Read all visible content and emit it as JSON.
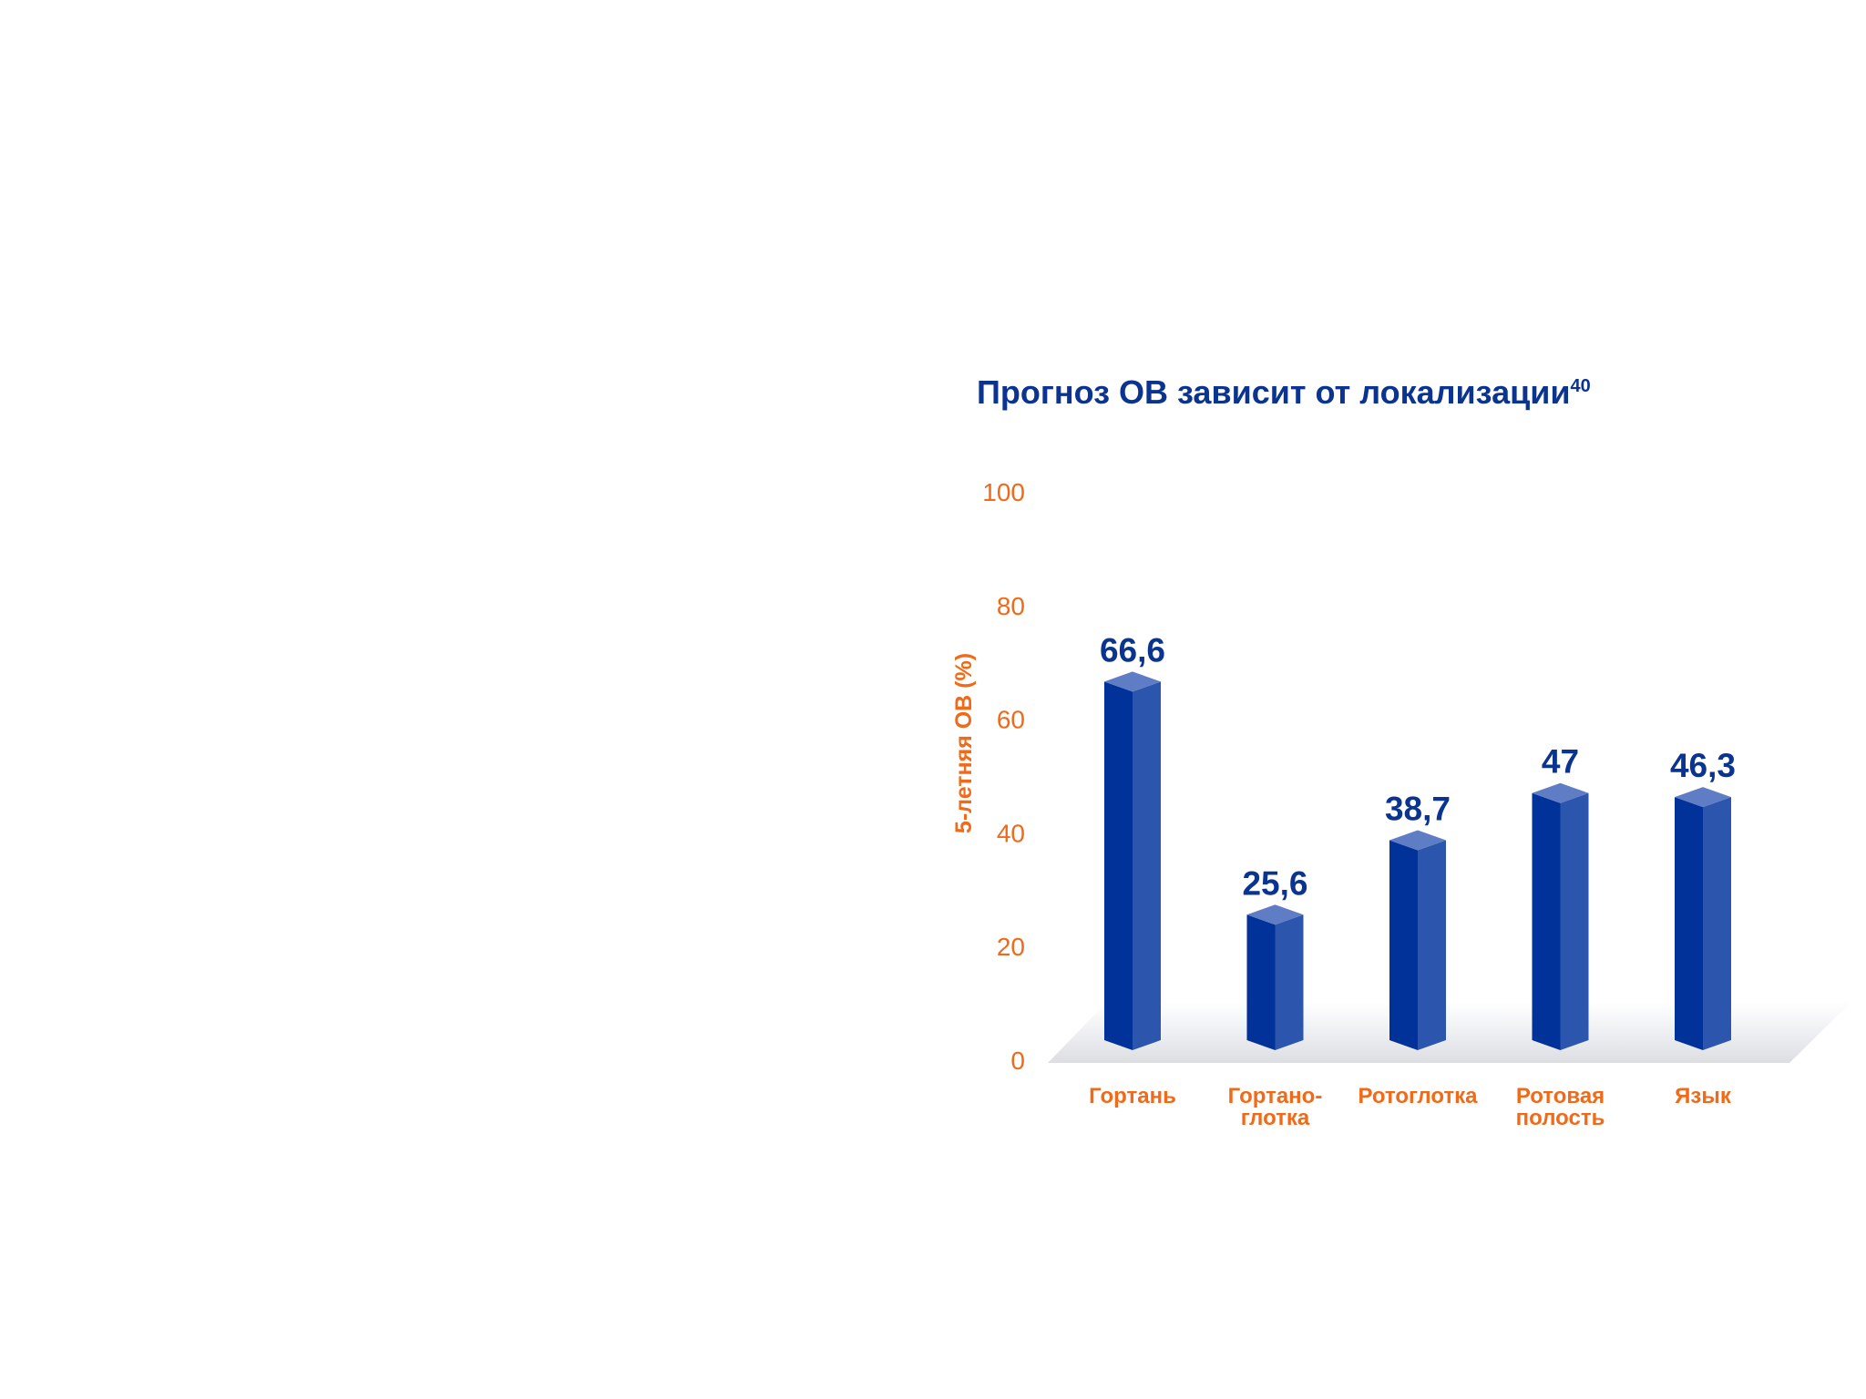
{
  "title": "Прогноз ОВ зависит от локализации",
  "title_ref": "40",
  "colors": {
    "title": "#0b3490",
    "axis": "#f06a19",
    "bar_front": "#00329a",
    "bar_side": "#2c56ad",
    "bar_top": "#5f7dc4",
    "value_label": "#0b3490",
    "floor": "#e4e5e8"
  },
  "chart_data": {
    "type": "bar",
    "title": "Прогноз ОВ зависит от локализации",
    "ylabel": "5-летняя ОВ (%)",
    "xlabel": "",
    "ylim": [
      0,
      100
    ],
    "yticks": [
      "0",
      "20",
      "40",
      "60",
      "80",
      "100"
    ],
    "categories": [
      [
        "Гортань"
      ],
      [
        "Гортано-",
        "глотка"
      ],
      [
        "Ротоглотка"
      ],
      [
        "Ротовая",
        "полость"
      ],
      [
        "Язык"
      ]
    ],
    "values": [
      66.6,
      25.6,
      38.7,
      47,
      46.3
    ],
    "value_labels": [
      "66,6",
      "25,6",
      "38,7",
      "47",
      "46,3"
    ],
    "grid": false,
    "style": "3d-bars"
  }
}
